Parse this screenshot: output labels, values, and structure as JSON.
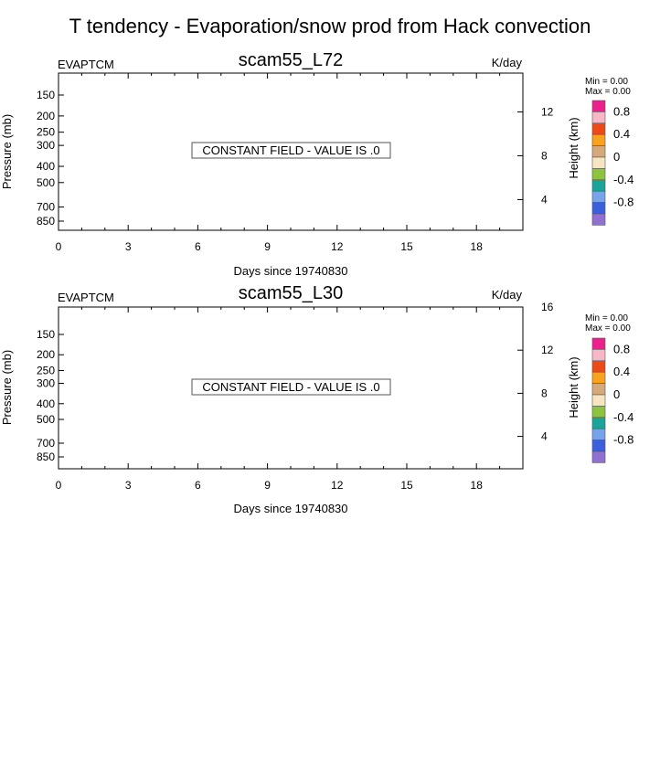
{
  "page_title": "T tendency - Evaporation/snow prod from Hack convection",
  "panels": [
    {
      "title": "scam55_L72",
      "left_label": "EVAPTCM",
      "right_label": "K/day",
      "constant_msg": "CONSTANT FIELD - VALUE IS .0",
      "xlabel": "Days since 19740830",
      "ylabel_left": "Pressure (mb)",
      "ylabel_right": "Height (km)",
      "min_text": "Min =   0.00",
      "max_text": "Max =   0.00"
    },
    {
      "title": "scam55_L30",
      "left_label": "EVAPTCM",
      "right_label": "K/day",
      "constant_msg": "CONSTANT FIELD - VALUE IS .0",
      "xlabel": "Days since 19740830",
      "ylabel_left": "Pressure (mb)",
      "ylabel_right": "Height (km)",
      "min_text": "Min =   0.00",
      "max_text": "Max =   0.00"
    }
  ],
  "chart_data": [
    {
      "type": "heatmap",
      "title": "scam55_L72",
      "xlabel": "Days since 19740830",
      "ylabel": "Pressure (mb)",
      "y2label": "Height (km)",
      "units": "K/day",
      "variable": "EVAPTCM",
      "xlim": [
        0,
        20
      ],
      "x_ticks": [
        0,
        3,
        6,
        9,
        12,
        15,
        18
      ],
      "p_ticks": [
        150,
        200,
        250,
        300,
        400,
        500,
        700,
        850
      ],
      "z_ticks": [
        4,
        8,
        12
      ],
      "z_tick_labels": [
        "4",
        "8",
        "12"
      ],
      "constant_value": 0.0,
      "min": 0.0,
      "max": 0.0,
      "colorbar_labels": [
        "0.8",
        "0.4",
        "0",
        "-0.4",
        "-0.8"
      ],
      "colorbar_colors": [
        "#ec1f8c",
        "#f8b7c7",
        "#ee4a17",
        "#f8a21d",
        "#d4aa7d",
        "#f7e4c0",
        "#8dc33f",
        "#1ba49a",
        "#78a2e9",
        "#3c5fdb",
        "#9070d0"
      ]
    },
    {
      "type": "heatmap",
      "title": "scam55_L30",
      "xlabel": "Days since 19740830",
      "ylabel": "Pressure (mb)",
      "y2label": "Height (km)",
      "units": "K/day",
      "variable": "EVAPTCM",
      "xlim": [
        0,
        20
      ],
      "x_ticks": [
        0,
        3,
        6,
        9,
        12,
        15,
        18
      ],
      "p_ticks": [
        150,
        200,
        250,
        300,
        400,
        500,
        700,
        850
      ],
      "z_ticks": [
        4,
        8,
        12,
        16
      ],
      "z_tick_labels": [
        "4",
        "8",
        "12",
        "16"
      ],
      "constant_value": 0.0,
      "min": 0.0,
      "max": 0.0,
      "colorbar_labels": [
        "0.8",
        "0.4",
        "0",
        "-0.4",
        "-0.8"
      ],
      "colorbar_colors": [
        "#ec1f8c",
        "#f8b7c7",
        "#ee4a17",
        "#f8a21d",
        "#d4aa7d",
        "#f7e4c0",
        "#8dc33f",
        "#1ba49a",
        "#78a2e9",
        "#3c5fdb",
        "#9070d0"
      ]
    }
  ]
}
